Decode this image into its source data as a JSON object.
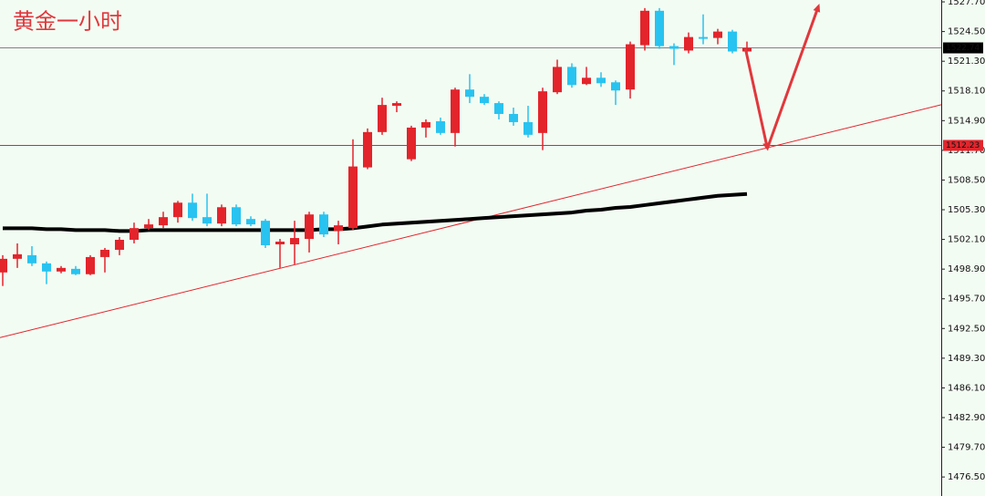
{
  "chart_data": {
    "type": "candlestick",
    "title": "黄金一小时",
    "up_color": "#e3242b",
    "down_color": "#28c3f0",
    "open": [
      1498.54,
      1500.01,
      1500.4,
      1499.52,
      1498.64,
      1498.93,
      1498.35,
      1500.2,
      1500.98,
      1502.06,
      1503.32,
      1503.62,
      1504.5,
      1506.06,
      1504.5,
      1503.81,
      1505.57,
      1504.3,
      1504.11,
      1501.57,
      1501.57,
      1502.15,
      1504.79,
      1503.03,
      1503.32,
      1509.86,
      1513.67,
      1516.5,
      1510.74,
      1514.15,
      1514.84,
      1513.57,
      1518.25,
      1517.47,
      1516.79,
      1515.62,
      1514.74,
      1513.57,
      1517.96,
      1520.69,
      1518.84,
      1519.52,
      1519.03,
      1518.25,
      1523.03,
      1526.74,
      1522.93,
      1522.45,
      1523.91,
      1523.81,
      1524.5,
      1522.35
    ],
    "high": [
      1500.4,
      1501.67,
      1501.37,
      1499.72,
      1499.23,
      1499.23,
      1500.4,
      1501.18,
      1502.35,
      1503.91,
      1504.3,
      1505.08,
      1506.25,
      1507.03,
      1507.03,
      1505.86,
      1505.86,
      1504.59,
      1504.3,
      1502.15,
      1504.11,
      1505.08,
      1505.08,
      1504.11,
      1512.89,
      1514.06,
      1517.37,
      1516.98,
      1514.35,
      1515.03,
      1515.23,
      1518.45,
      1519.91,
      1517.76,
      1516.98,
      1516.3,
      1516.5,
      1518.45,
      1521.47,
      1521.08,
      1520.69,
      1520.11,
      1519.23,
      1523.42,
      1527.03,
      1527.03,
      1523.23,
      1524.4,
      1526.35,
      1524.79,
      1524.69,
      1523.42
    ],
    "low": [
      1497.08,
      1499.03,
      1499.23,
      1497.28,
      1498.45,
      1498.25,
      1498.25,
      1498.54,
      1500.4,
      1501.67,
      1503.13,
      1503.32,
      1503.91,
      1504.11,
      1503.52,
      1503.52,
      1503.52,
      1503.52,
      1501.18,
      1499.03,
      1499.42,
      1500.69,
      1502.35,
      1501.57,
      1503.13,
      1509.67,
      1513.37,
      1515.81,
      1510.54,
      1513.08,
      1513.37,
      1512.11,
      1516.79,
      1516.59,
      1515.03,
      1514.35,
      1513.08,
      1511.72,
      1517.76,
      1518.45,
      1518.74,
      1518.54,
      1516.59,
      1517.28,
      1522.45,
      1522.64,
      1520.89,
      1522.15,
      1523.13,
      1523.13,
      1522.15,
      1522.15
    ],
    "close": [
      1500.01,
      1500.5,
      1499.52,
      1498.64,
      1499.03,
      1498.35,
      1500.2,
      1500.98,
      1502.06,
      1503.32,
      1503.72,
      1504.5,
      1506.06,
      1504.4,
      1503.81,
      1505.57,
      1503.72,
      1503.72,
      1501.47,
      1501.86,
      1502.25,
      1504.79,
      1502.64,
      1503.62,
      1509.96,
      1513.67,
      1516.59,
      1516.79,
      1514.15,
      1514.74,
      1513.57,
      1518.25,
      1517.47,
      1516.79,
      1515.62,
      1514.74,
      1513.37,
      1518.06,
      1520.69,
      1518.74,
      1519.52,
      1518.93,
      1518.15,
      1523.13,
      1526.74,
      1522.93,
      1522.64,
      1523.91,
      1523.72,
      1524.5,
      1522.35,
      1522.74
    ],
    "ma": {
      "color": "#000000",
      "values": [
        1503.3,
        1503.3,
        1503.3,
        1503.2,
        1503.2,
        1503.1,
        1503.1,
        1503.1,
        1503.0,
        1503.0,
        1503.1,
        1503.1,
        1503.1,
        1503.1,
        1503.1,
        1503.1,
        1503.1,
        1503.1,
        1503.1,
        1503.1,
        1503.1,
        1503.1,
        1503.2,
        1503.2,
        1503.3,
        1503.5,
        1503.7,
        1503.8,
        1503.9,
        1504.0,
        1504.1,
        1504.2,
        1504.3,
        1504.4,
        1504.5,
        1504.6,
        1504.7,
        1504.8,
        1504.9,
        1505.0,
        1505.2,
        1505.3,
        1505.5,
        1505.6,
        1505.8,
        1506.0,
        1506.2,
        1506.4,
        1506.6,
        1506.8,
        1506.9,
        1507.0
      ]
    },
    "trendline": {
      "color": "#e3242b",
      "values": [
        1491.52,
        1516.61
      ]
    },
    "projection": {
      "color": "#e0383c",
      "x": [
        50.9,
        52.4,
        55.9
      ],
      "values": [
        1522.64,
        1511.91,
        1527.23
      ]
    },
    "price_lines": [
      {
        "value": 1522.74,
        "color": "#808080",
        "box": "#000000"
      },
      {
        "value": 1512.23,
        "color": "#e3242b",
        "box": "#e3242b"
      }
    ],
    "ylim": [
      1474.45,
      1527.9
    ],
    "yticks": [
      {
        "value": 1476.5,
        "label": "1476.50"
      },
      {
        "value": 1479.7,
        "label": "1479.70"
      },
      {
        "value": 1482.9,
        "label": "1482.90"
      },
      {
        "value": 1486.1,
        "label": "1486.10"
      },
      {
        "value": 1489.3,
        "label": "1489.30"
      },
      {
        "value": 1492.5,
        "label": "1492.50"
      },
      {
        "value": 1495.7,
        "label": "1495.70"
      },
      {
        "value": 1498.9,
        "label": "1498.90"
      },
      {
        "value": 1502.1,
        "label": "1502.10"
      },
      {
        "value": 1505.3,
        "label": "1505.30"
      },
      {
        "value": 1508.5,
        "label": "1508.50"
      },
      {
        "value": 1511.7,
        "label": "1511.70"
      },
      {
        "value": 1514.9,
        "label": "1514.90"
      },
      {
        "value": 1518.1,
        "label": "1518.10"
      },
      {
        "value": 1521.3,
        "label": "1521.30"
      },
      {
        "value": 1524.5,
        "label": "1524.50"
      },
      {
        "value": 1527.7,
        "label": "1527.70"
      }
    ]
  }
}
